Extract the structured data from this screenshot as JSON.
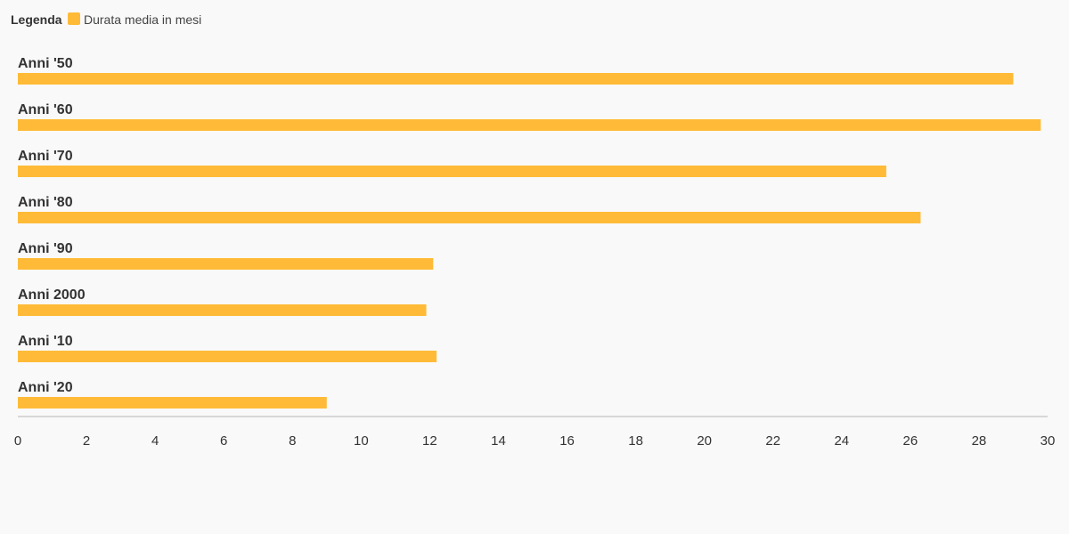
{
  "legend": {
    "title": "Legenda",
    "entries": [
      {
        "label": "Durata media in mesi",
        "color": "#ffbb38"
      }
    ]
  },
  "chart_data": {
    "type": "bar",
    "orientation": "horizontal",
    "categories": [
      "Anni '50",
      "Anni '60",
      "Anni '70",
      "Anni '80",
      "Anni '90",
      "Anni 2000",
      "Anni '10",
      "Anni '20"
    ],
    "series": [
      {
        "name": "Durata media in mesi",
        "values": [
          29.0,
          29.8,
          25.3,
          26.3,
          12.1,
          11.9,
          12.2,
          9.0
        ]
      }
    ],
    "title": "",
    "xlabel": "",
    "ylabel": "",
    "xlim": [
      0,
      30
    ],
    "xticks": [
      "0",
      "2",
      "4",
      "6",
      "8",
      "10",
      "12",
      "14",
      "16",
      "18",
      "20",
      "22",
      "24",
      "26",
      "28",
      "30"
    ],
    "grid": false,
    "legend_position": "top-left",
    "colors": {
      "bar": "#ffbb38",
      "axis": "#cccccc"
    }
  }
}
